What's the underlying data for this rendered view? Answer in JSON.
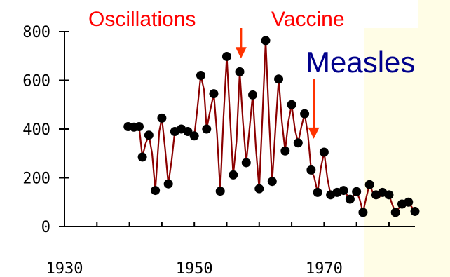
{
  "chart_data": {
    "type": "line",
    "title": "",
    "xlabel": "",
    "ylabel": "",
    "xlim": [
      1930,
      1984
    ],
    "ylim": [
      0,
      800
    ],
    "x_ticks": [
      1930,
      1950,
      1970
    ],
    "y_ticks": [
      0,
      200,
      400,
      600,
      800
    ],
    "x_tick_labels": [
      "1930",
      "1950",
      "1970"
    ],
    "y_tick_labels": [
      "0",
      "200",
      "400",
      "600",
      "800"
    ],
    "grid": false,
    "line_color": "#8b0000",
    "marker_color": "#000000",
    "annotations": [
      {
        "label": "Oscillations",
        "color": "#ff0000",
        "arrow_x": 1957.2,
        "arrow_y": 690
      },
      {
        "label": "Vaccine",
        "color": "#ff0000"
      },
      {
        "label": "Measles",
        "color": "#00008b",
        "arrow_x": 1968.4,
        "arrow_y": 360
      }
    ],
    "series": [
      {
        "points": [
          {
            "x": 1939.4,
            "y": 410,
            "m": false
          },
          {
            "x": 1939.8,
            "y": 410,
            "m": true
          },
          {
            "x": 1940.2,
            "y": 412,
            "m": false
          },
          {
            "x": 1940.7,
            "y": 408,
            "m": true
          },
          {
            "x": 1941.1,
            "y": 412,
            "m": false
          },
          {
            "x": 1941.5,
            "y": 410,
            "m": true
          },
          {
            "x": 1942.0,
            "y": 285,
            "m": true
          },
          {
            "x": 1942.5,
            "y": 340,
            "m": false
          },
          {
            "x": 1943.0,
            "y": 375,
            "m": true
          },
          {
            "x": 1943.5,
            "y": 300,
            "m": false
          },
          {
            "x": 1944.0,
            "y": 148,
            "m": true
          },
          {
            "x": 1944.6,
            "y": 390,
            "m": false
          },
          {
            "x": 1945.0,
            "y": 445,
            "m": true
          },
          {
            "x": 1945.5,
            "y": 320,
            "m": false
          },
          {
            "x": 1946.0,
            "y": 175,
            "m": true
          },
          {
            "x": 1946.5,
            "y": 270,
            "m": false
          },
          {
            "x": 1947.0,
            "y": 390,
            "m": true
          },
          {
            "x": 1947.5,
            "y": 395,
            "m": false
          },
          {
            "x": 1948.0,
            "y": 400,
            "m": true
          },
          {
            "x": 1948.5,
            "y": 390,
            "m": false
          },
          {
            "x": 1949.0,
            "y": 390,
            "m": true
          },
          {
            "x": 1949.5,
            "y": 380,
            "m": false
          },
          {
            "x": 1950.0,
            "y": 372,
            "m": true
          },
          {
            "x": 1950.5,
            "y": 490,
            "m": false
          },
          {
            "x": 1951.0,
            "y": 620,
            "m": true
          },
          {
            "x": 1951.5,
            "y": 560,
            "m": false
          },
          {
            "x": 1951.9,
            "y": 400,
            "m": true
          },
          {
            "x": 1952.4,
            "y": 470,
            "m": false
          },
          {
            "x": 1953.0,
            "y": 545,
            "m": true
          },
          {
            "x": 1953.5,
            "y": 380,
            "m": false
          },
          {
            "x": 1954.0,
            "y": 145,
            "m": true
          },
          {
            "x": 1954.5,
            "y": 450,
            "m": false
          },
          {
            "x": 1955.0,
            "y": 698,
            "m": true
          },
          {
            "x": 1955.5,
            "y": 450,
            "m": false
          },
          {
            "x": 1956.0,
            "y": 212,
            "m": true
          },
          {
            "x": 1956.5,
            "y": 350,
            "m": false
          },
          {
            "x": 1957.0,
            "y": 635,
            "m": true
          },
          {
            "x": 1957.5,
            "y": 430,
            "m": false
          },
          {
            "x": 1958.0,
            "y": 262,
            "m": true
          },
          {
            "x": 1958.5,
            "y": 400,
            "m": false
          },
          {
            "x": 1959.0,
            "y": 540,
            "m": true
          },
          {
            "x": 1959.5,
            "y": 320,
            "m": false
          },
          {
            "x": 1960.0,
            "y": 155,
            "m": true
          },
          {
            "x": 1960.5,
            "y": 450,
            "m": false
          },
          {
            "x": 1961.0,
            "y": 763,
            "m": true
          },
          {
            "x": 1961.5,
            "y": 450,
            "m": false
          },
          {
            "x": 1962.0,
            "y": 185,
            "m": true
          },
          {
            "x": 1962.5,
            "y": 400,
            "m": false
          },
          {
            "x": 1963.0,
            "y": 605,
            "m": true
          },
          {
            "x": 1963.5,
            "y": 430,
            "m": false
          },
          {
            "x": 1964.0,
            "y": 310,
            "m": true
          },
          {
            "x": 1964.5,
            "y": 430,
            "m": false
          },
          {
            "x": 1965.0,
            "y": 500,
            "m": true
          },
          {
            "x": 1965.5,
            "y": 400,
            "m": false
          },
          {
            "x": 1966.0,
            "y": 343,
            "m": true
          },
          {
            "x": 1966.5,
            "y": 410,
            "m": false
          },
          {
            "x": 1967.0,
            "y": 463,
            "m": true
          },
          {
            "x": 1967.5,
            "y": 380,
            "m": false
          },
          {
            "x": 1968.0,
            "y": 232,
            "m": true
          },
          {
            "x": 1968.5,
            "y": 200,
            "m": false
          },
          {
            "x": 1969.0,
            "y": 140,
            "m": true
          },
          {
            "x": 1969.5,
            "y": 240,
            "m": false
          },
          {
            "x": 1970.0,
            "y": 305,
            "m": true
          },
          {
            "x": 1970.5,
            "y": 200,
            "m": false
          },
          {
            "x": 1971.0,
            "y": 130,
            "m": true
          },
          {
            "x": 1971.5,
            "y": 135,
            "m": false
          },
          {
            "x": 1972.0,
            "y": 140,
            "m": true
          },
          {
            "x": 1972.5,
            "y": 130,
            "m": false
          },
          {
            "x": 1973.0,
            "y": 148,
            "m": true
          },
          {
            "x": 1973.5,
            "y": 130,
            "m": false
          },
          {
            "x": 1974.0,
            "y": 112,
            "m": true
          },
          {
            "x": 1974.5,
            "y": 125,
            "m": false
          },
          {
            "x": 1975.0,
            "y": 143,
            "m": true
          },
          {
            "x": 1975.5,
            "y": 110,
            "m": false
          },
          {
            "x": 1976.0,
            "y": 58,
            "m": true
          },
          {
            "x": 1976.5,
            "y": 120,
            "m": false
          },
          {
            "x": 1977.0,
            "y": 172,
            "m": true
          },
          {
            "x": 1977.5,
            "y": 140,
            "m": false
          },
          {
            "x": 1978.0,
            "y": 130,
            "m": true
          },
          {
            "x": 1978.5,
            "y": 120,
            "m": false
          },
          {
            "x": 1979.0,
            "y": 140,
            "m": true
          },
          {
            "x": 1979.5,
            "y": 125,
            "m": false
          },
          {
            "x": 1980.0,
            "y": 130,
            "m": true
          },
          {
            "x": 1980.5,
            "y": 90,
            "m": false
          },
          {
            "x": 1981.0,
            "y": 58,
            "m": true
          },
          {
            "x": 1981.5,
            "y": 75,
            "m": false
          },
          {
            "x": 1982.0,
            "y": 92,
            "m": true
          },
          {
            "x": 1982.5,
            "y": 95,
            "m": false
          },
          {
            "x": 1983.0,
            "y": 100,
            "m": true
          },
          {
            "x": 1983.5,
            "y": 80,
            "m": false
          },
          {
            "x": 1984.0,
            "y": 62,
            "m": true
          }
        ]
      }
    ]
  }
}
